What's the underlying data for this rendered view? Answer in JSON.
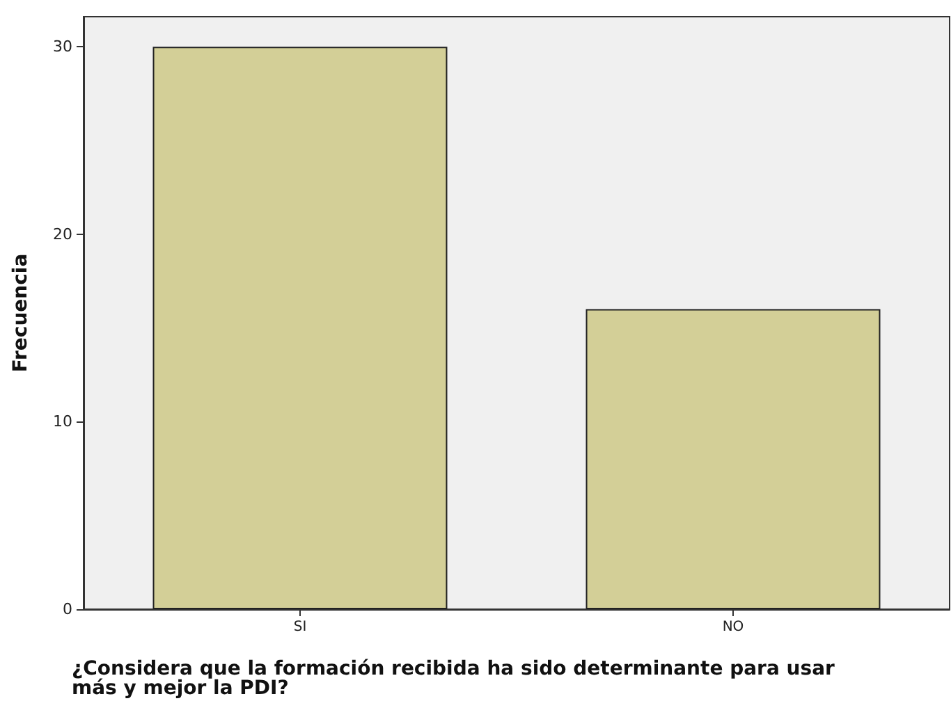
{
  "chart_data": {
    "type": "bar",
    "xlabel": "¿Considera que la formación recibida ha sido determinante para usar más y mejor la PDI?",
    "ylabel": "Frecuencia",
    "categories": [
      "SI",
      "NO"
    ],
    "values": [
      30,
      16
    ],
    "color": "#d3cf97",
    "ylim": [
      0,
      31.6
    ],
    "yticks": [
      0,
      10,
      20,
      30
    ],
    "grid": false
  }
}
